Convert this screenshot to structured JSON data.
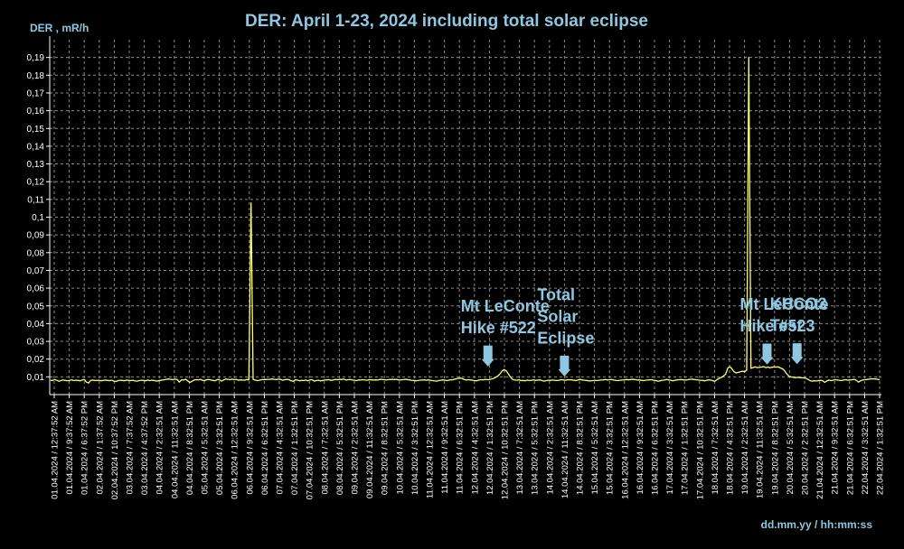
{
  "chart_data": {
    "type": "line",
    "title": "DER: April 1-23, 2024 including total solar eclipse",
    "ylabel": "DER , mR/h",
    "xlabel": "dd.mm.yy / hh:mm:ss",
    "ylim": [
      0,
      0.2
    ],
    "yticks": [
      "0,01",
      "0,02",
      "0,03",
      "0,04",
      "0,05",
      "0,06",
      "0,07",
      "0,08",
      "0,09",
      "0,1",
      "0,11",
      "0,12",
      "0,13",
      "0,14",
      "0,15",
      "0,16",
      "0,17",
      "0,18",
      "0,19"
    ],
    "xticks": [
      "01.04.2024 / 12:37:52 AM",
      "01.04.2024 / 9:37:52 AM",
      "01.04.2024 / 6:37:52 PM",
      "02.04.2024 / 1:37:52 AM",
      "02.04.2024 / 10:37:52 PM",
      "03.04.2024 / 7:37:52 AM",
      "03.04.2024 / 4:37:52 PM",
      "04.04.2024 / 2:32:51 AM",
      "04.04.2024 / 11:32:51 AM",
      "04.04.2024 / 8:32:51 PM",
      "05.04.2024 / 5:32:51 AM",
      "05.04.2024 / 3:32:51 PM",
      "06.04.2024 / 12:32:51 AM",
      "06.04.2024 / 9:32:51 AM",
      "06.04.2024 / 6:32:51 PM",
      "07.04.2024 / 4:32:51 AM",
      "07.04.2024 / 1:32:51 PM",
      "07.04.2024 / 10:32:51 PM",
      "08.04.2024 / 7:32:51 AM",
      "08.04.2024 / 5:32:51 PM",
      "09.04.2024 / 2:32:51 AM",
      "09.04.2024 / 11:32:51 AM",
      "09.04.2024 / 8:32:51 PM",
      "10.04.2024 / 5:32:51 AM",
      "10.04.2024 / 3:32:51 PM",
      "11.04.2024 / 12:32:51 AM",
      "11.04.2024 / 9:32:51 AM",
      "11.04.2024 / 6:32:51 PM",
      "12.04.2024 / 4:32:51 AM",
      "12.04.2024 / 1:32:51 PM",
      "12.04.2024 / 10:32:51 PM",
      "13.04.2024 / 7:32:51 AM",
      "13.04.2024 / 5:32:51 PM",
      "14.04.2024 / 2:32:51 AM",
      "14.04.2024 / 11:32:51 AM",
      "14.04.2024 / 8:32:51 PM",
      "15.04.2024 / 5:32:51 AM",
      "15.04.2024 / 3:32:51 PM",
      "16.04.2024 / 12:32:51 AM",
      "16.04.2024 / 9:32:51 AM",
      "16.04.2024 / 6:32:51 PM",
      "17.04.2024 / 3:32:51 AM",
      "17.04.2024 / 1:32:51 PM",
      "17.04.2024 / 10:32:51 PM",
      "18.04.2024 / 7:32:51 AM",
      "18.04.2024 / 4:32:51 PM",
      "19.04.2024 / 2:32:51 AM",
      "19.04.2024 / 11:32:51 AM",
      "19.04.2024 / 8:32:51 PM",
      "20.04.2024 / 5:32:51 AM",
      "20.04.2024 / 2:32:51 PM",
      "21.04.2024 / 12:32:51 AM",
      "21.04.2024 / 9:32:51 AM",
      "21.04.2024 / 6:32:51 PM",
      "22.04.2024 / 3:32:51 AM",
      "22.04.2024 / 1:32:51 PM"
    ],
    "series": [
      {
        "color": "#ffff66",
        "values": [
          0.008,
          0.008,
          0.0085,
          0.008,
          0.0075,
          0.008,
          0.0082,
          0.008,
          0.0078,
          0.008,
          0.0083,
          0.0079,
          0.0081,
          0.008,
          0.0078,
          0.0082,
          0.0085,
          0.007,
          0.0065,
          0.008,
          0.0082,
          0.0079,
          0.008,
          0.0081,
          0.0078,
          0.008,
          0.0082,
          0.008,
          0.0079,
          0.0081,
          0.0076,
          0.0074,
          0.0079,
          0.0081,
          0.008,
          0.0078,
          0.0082,
          0.008,
          0.0079,
          0.0081,
          0.0077,
          0.0076,
          0.0079,
          0.0081,
          0.008,
          0.0078,
          0.0082,
          0.0079,
          0.0081,
          0.008,
          0.0076,
          0.0078,
          0.008,
          0.0082,
          0.0084,
          0.0086,
          0.0088,
          0.0086,
          0.0084,
          0.0087,
          0.0085,
          0.007,
          0.0083,
          0.0082,
          0.0086,
          0.0078,
          0.0068,
          0.0075,
          0.0082,
          0.0084,
          0.0083,
          0.0086,
          0.0081,
          0.0079,
          0.0084,
          0.0085,
          0.0082,
          0.008,
          0.0078,
          0.0085,
          0.0084,
          0.0076,
          0.0082,
          0.0088,
          0.0086,
          0.0084,
          0.0087,
          0.0084,
          0.0086,
          0.0081,
          0.0083,
          0.0082,
          0.0081,
          0.0085,
          0.0083,
          0.108,
          0.0086,
          0.0082,
          0.0079,
          0.0081,
          0.0084,
          0.0085,
          0.0085,
          0.0086,
          0.0086,
          0.0088,
          0.0086,
          0.0085,
          0.0087,
          0.0086,
          0.0081,
          0.0084,
          0.0086,
          0.0084,
          0.0078,
          0.0075,
          0.0083,
          0.0082,
          0.0078,
          0.0081,
          0.0079,
          0.0082,
          0.0078,
          0.0083,
          0.0084,
          0.0076,
          0.0079,
          0.0081,
          0.0077,
          0.008,
          0.0082,
          0.0083,
          0.0084,
          0.008,
          0.0083,
          0.0085,
          0.0084,
          0.0086,
          0.0085,
          0.0088,
          0.0082,
          0.0084,
          0.0085,
          0.0082,
          0.0081,
          0.0079,
          0.0083,
          0.0082,
          0.0084,
          0.0082,
          0.0081,
          0.0084,
          0.0083,
          0.0082,
          0.0083,
          0.0082,
          0.0085,
          0.0086,
          0.0084,
          0.0082,
          0.0084,
          0.0085,
          0.0086,
          0.0085,
          0.0086,
          0.0082,
          0.0083,
          0.0084,
          0.0086,
          0.0085,
          0.0083,
          0.0081,
          0.008,
          0.0078,
          0.0079,
          0.0081,
          0.0082,
          0.0083,
          0.0081,
          0.0083,
          0.0081,
          0.0079,
          0.0077,
          0.0076,
          0.0079,
          0.0081,
          0.0083,
          0.0081,
          0.0079,
          0.0082,
          0.0083,
          0.0085,
          0.0088,
          0.0091,
          0.0093,
          0.0091,
          0.0086,
          0.0082,
          0.0084,
          0.0083,
          0.0081,
          0.0079,
          0.0078,
          0.0082,
          0.0084,
          0.0083,
          0.0086,
          0.0084,
          0.0085,
          0.0088,
          0.0091,
          0.0097,
          0.0105,
          0.0116,
          0.0133,
          0.0141,
          0.0134,
          0.0117,
          0.0098,
          0.0086,
          0.0082,
          0.0081,
          0.0084,
          0.0079,
          0.008,
          0.0078,
          0.0082,
          0.0079,
          0.0081,
          0.0083,
          0.008,
          0.0082,
          0.0083,
          0.0079,
          0.0076,
          0.0079,
          0.0081,
          0.008,
          0.0082,
          0.0081,
          0.0079,
          0.0081,
          0.0084,
          0.0083,
          0.0081,
          0.0083,
          0.0084,
          0.0083,
          0.0081,
          0.0079,
          0.0083,
          0.0085,
          0.0083,
          0.0081,
          0.008,
          0.0078,
          0.0077,
          0.0079,
          0.0081,
          0.0079,
          0.0081,
          0.0082,
          0.0083,
          0.0085,
          0.0082,
          0.0084,
          0.0085,
          0.0082,
          0.008,
          0.0079,
          0.0081,
          0.0082,
          0.0083,
          0.0085,
          0.0083,
          0.0085,
          0.0086,
          0.0085,
          0.0082,
          0.0083,
          0.0081,
          0.0079,
          0.0081,
          0.0082,
          0.0083,
          0.0084,
          0.0081,
          0.0079,
          0.0075,
          0.0078,
          0.0081,
          0.0082,
          0.0085,
          0.0083,
          0.0081,
          0.0078,
          0.0081,
          0.0083,
          0.0084,
          0.0085,
          0.0083,
          0.0082,
          0.0084,
          0.0086,
          0.0087,
          0.0085,
          0.0084,
          0.0082,
          0.0081,
          0.008,
          0.0078,
          0.0081,
          0.0083,
          0.0082,
          0.0078,
          0.0076,
          0.0085,
          0.0092,
          0.0097,
          0.0105,
          0.0115,
          0.0148,
          0.0158,
          0.0145,
          0.0129,
          0.0122,
          0.0125,
          0.0128,
          0.0132,
          0.0128,
          0.0138,
          0.19,
          0.0148,
          0.0152,
          0.0156,
          0.0152,
          0.0153,
          0.0155,
          0.0158,
          0.0152,
          0.0155,
          0.0151,
          0.0154,
          0.0156,
          0.0155,
          0.0156,
          0.015,
          0.0145,
          0.0134,
          0.0116,
          0.0105,
          0.0099,
          0.0098,
          0.0095,
          0.0097,
          0.0096,
          0.0095,
          0.0094,
          0.0092,
          0.0086,
          0.0079,
          0.0076,
          0.0078,
          0.0077,
          0.0079,
          0.0081,
          0.0078,
          0.0069,
          0.0077,
          0.0082,
          0.0079,
          0.0081,
          0.0084,
          0.0082,
          0.0081,
          0.0079,
          0.0082,
          0.0084,
          0.0081,
          0.0083,
          0.0084,
          0.0086,
          0.008,
          0.007,
          0.0078,
          0.0082,
          0.0084,
          0.0085,
          0.0087,
          0.0088,
          0.0089,
          0.0088,
          0.0086,
          0.0084
        ]
      }
    ],
    "annotations": [
      {
        "lines": [
          "Total",
          "Solar",
          "Eclipse"
        ],
        "x_index": 34,
        "arrow_value": 0.0095
      },
      {
        "lines": [
          "Mt LeConte",
          "Hike #522"
        ],
        "x_index": 28.9,
        "arrow_value": 0.0152
      },
      {
        "lines": [
          "Mt LeConte",
          "Hike #523"
        ],
        "x_index": 47.5,
        "arrow_value": 0.0163
      },
      {
        "lines": [
          "KHCO3",
          "Test"
        ],
        "x_index": 49.5,
        "arrow_value": 0.0165
      }
    ],
    "grid": true
  }
}
